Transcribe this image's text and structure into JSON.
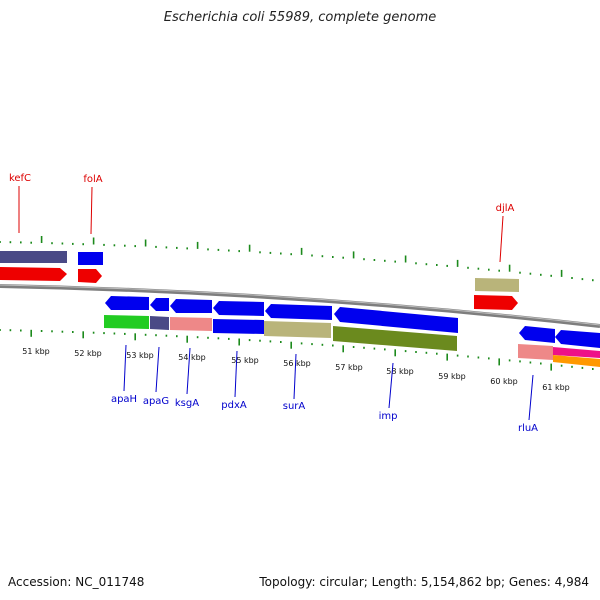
{
  "title": "Escherichia coli 55989, complete genome",
  "footer": {
    "accession": "Accession: NC_011748",
    "stats": "Topology: circular; Length: 5,154,862 bp; Genes: 4,984"
  },
  "colors": {
    "forward_label": "#dd0000",
    "reverse_label": "#0000cc",
    "tick": "#1c8a1c",
    "backbone": "#7a7a7a"
  },
  "kbp_labels": [
    "51 kbp",
    "52 kbp",
    "53 kbp",
    "54 kbp",
    "55 kbp",
    "56 kbp",
    "57 kbp",
    "58 kbp",
    "59 kbp",
    "60 kbp",
    "61 kbp"
  ],
  "forward_gene_labels": [
    "kefC",
    "folA",
    "djlA"
  ],
  "reverse_gene_labels": [
    "apaH",
    "apaG",
    "ksgA",
    "pdxA",
    "surA",
    "imp",
    "rluA"
  ]
}
